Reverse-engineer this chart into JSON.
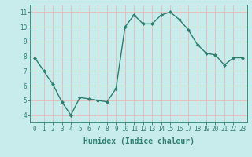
{
  "x": [
    0,
    1,
    2,
    3,
    4,
    5,
    6,
    7,
    8,
    9,
    10,
    11,
    12,
    13,
    14,
    15,
    16,
    17,
    18,
    19,
    20,
    21,
    22,
    23
  ],
  "y": [
    7.9,
    7.0,
    6.1,
    4.9,
    4.0,
    5.2,
    5.1,
    5.0,
    4.9,
    5.8,
    10.0,
    10.8,
    10.2,
    10.2,
    10.8,
    11.0,
    10.5,
    9.8,
    8.8,
    8.2,
    8.1,
    7.4,
    7.9,
    7.9
  ],
  "line_color": "#2e7d6e",
  "marker": "D",
  "marker_size": 2.0,
  "bg_color": "#c8ecec",
  "grid_color": "#e8b8b8",
  "xlabel": "Humidex (Indice chaleur)",
  "ylim": [
    3.5,
    11.5
  ],
  "xlim": [
    -0.5,
    23.5
  ],
  "yticks": [
    4,
    5,
    6,
    7,
    8,
    9,
    10,
    11
  ],
  "xticks": [
    0,
    1,
    2,
    3,
    4,
    5,
    6,
    7,
    8,
    9,
    10,
    11,
    12,
    13,
    14,
    15,
    16,
    17,
    18,
    19,
    20,
    21,
    22,
    23
  ],
  "tick_label_fontsize": 5.5,
  "xlabel_fontsize": 7.0,
  "line_width": 1.0
}
